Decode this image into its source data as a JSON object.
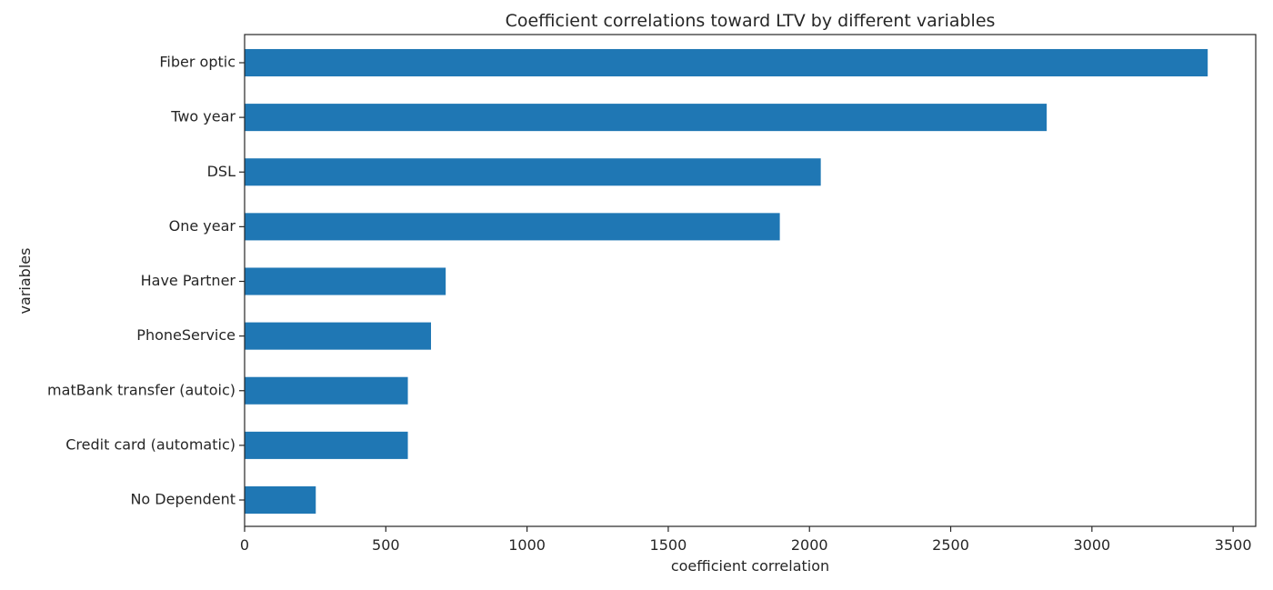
{
  "chart_data": {
    "type": "bar",
    "orientation": "horizontal",
    "title": "Coefficient correlations toward LTV by different variables",
    "xlabel": "coefficient correlation",
    "ylabel": "variables",
    "categories": [
      "Fiber optic",
      "Two year",
      "DSL",
      "One year",
      "Have Partner",
      "PhoneService",
      "matBank transfer (autoic)",
      "Credit card (automatic)",
      "No Dependent"
    ],
    "values": [
      3410,
      2840,
      2040,
      1895,
      712,
      660,
      578,
      578,
      252
    ],
    "xlim": [
      0,
      3580
    ],
    "xticks": [
      "0",
      "500",
      "1000",
      "1500",
      "2000",
      "2500",
      "3000",
      "3500"
    ],
    "grid": false,
    "bar_color": "#1f77b4"
  }
}
